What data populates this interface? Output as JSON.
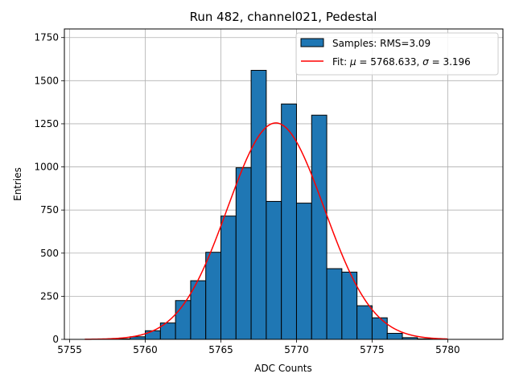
{
  "chart_data": {
    "type": "bar",
    "title": "Run 482, channel021, Pedestal",
    "xlabel": "ADC Counts",
    "ylabel": "Entries",
    "xlim": [
      5754.65,
      5783.65
    ],
    "ylim": [
      0,
      1800
    ],
    "grid": true,
    "legend_position": "top-right",
    "xticks": [
      5755,
      5760,
      5765,
      5770,
      5775,
      5780
    ],
    "yticks": [
      0,
      250,
      500,
      750,
      1000,
      1250,
      1500,
      1750
    ],
    "histogram": {
      "name": "Samples: RMS=3.09",
      "color": "#1f77b4",
      "edgecolor": "#000000",
      "bin_edges": [
        5756,
        5757,
        5758,
        5759,
        5760,
        5761,
        5762,
        5763,
        5764,
        5765,
        5766,
        5767,
        5768,
        5769,
        5770,
        5771,
        5772,
        5773,
        5774,
        5775,
        5776,
        5777,
        5778,
        5779,
        5780,
        5781,
        5782
      ],
      "counts": [
        0,
        0,
        3,
        15,
        50,
        95,
        225,
        340,
        505,
        715,
        995,
        1560,
        800,
        1365,
        790,
        1300,
        410,
        390,
        195,
        125,
        35,
        10,
        3,
        0,
        0,
        0
      ]
    },
    "fit": {
      "name": "Fit: μ = 5768.633, σ = 3.196",
      "color": "#ff0000",
      "mu": 5768.633,
      "sigma": 3.196,
      "amplitude": 1255,
      "x_range": [
        5756,
        5780
      ]
    },
    "legend": [
      {
        "label_prefix": "Samples: RMS=3.09",
        "kind": "patch"
      },
      {
        "label_prefix": "Fit: ",
        "mu_symbol": "μ",
        "mu_text": " = 5768.633, ",
        "sigma_symbol": "σ",
        "sigma_text": " = 3.196",
        "kind": "line"
      }
    ]
  }
}
